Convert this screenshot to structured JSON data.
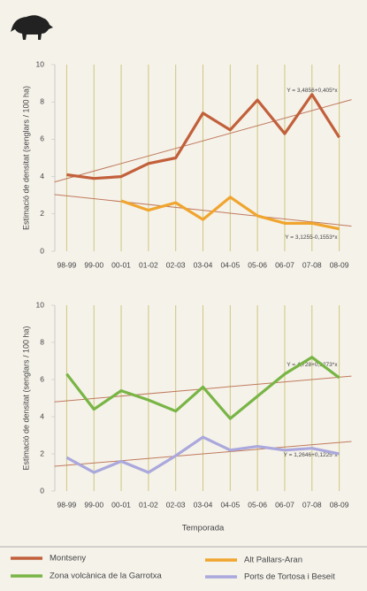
{
  "chart_data": [
    {
      "type": "line",
      "y_label": "Estimació de densitat (senglars / 100 ha)",
      "categories": [
        "98-99",
        "99-00",
        "00-01",
        "01-02",
        "02-03",
        "03-04",
        "04-05",
        "05-06",
        "06-07",
        "07-08",
        "08-09"
      ],
      "ylim": [
        0,
        10
      ],
      "yticks": [
        0,
        2,
        4,
        6,
        8,
        10
      ],
      "vertical_grid": true,
      "series": [
        {
          "name": "Montseny",
          "color": "#c2603b",
          "values": [
            4.1,
            3.9,
            4.0,
            4.7,
            5.0,
            7.4,
            6.5,
            8.1,
            6.3,
            8.4,
            6.1
          ]
        },
        {
          "name": "Alt Pallars-Aran",
          "color": "#f0a52e",
          "values": [
            null,
            null,
            2.7,
            2.2,
            2.6,
            1.7,
            2.9,
            1.9,
            1.5,
            1.5,
            1.2
          ]
        }
      ],
      "trendlines": [
        {
          "label": "Y = 3,4856+0,405*x",
          "intercept": 3.4856,
          "slope": 0.405,
          "color": "#c07a5c"
        },
        {
          "label": "Y = 3,1255-0,1553*x",
          "intercept": 3.1255,
          "slope": -0.1553,
          "color": "#c07a5c"
        }
      ]
    },
    {
      "type": "line",
      "y_label": "Estimació de densitat (senglars / 100 ha)",
      "x_label": "Temporada",
      "categories": [
        "98-99",
        "99-00",
        "00-01",
        "01-02",
        "02-03",
        "03-04",
        "04-05",
        "05-06",
        "06-07",
        "07-08",
        "08-09"
      ],
      "ylim": [
        0,
        10
      ],
      "yticks": [
        0,
        2,
        4,
        6,
        8,
        10
      ],
      "vertical_grid": true,
      "series": [
        {
          "name": "Zona volcànica de la Garrotxa",
          "color": "#78b545",
          "values": [
            6.3,
            4.4,
            5.4,
            4.9,
            4.3,
            5.6,
            3.9,
            5.1,
            6.3,
            7.2,
            6.1
          ]
        },
        {
          "name": "Ports de Tortosa i Beseit",
          "color": "#aaa8dc",
          "values": [
            1.8,
            1.0,
            1.6,
            1.0,
            1.9,
            2.9,
            2.2,
            2.4,
            2.2,
            2.3,
            2.0
          ]
        }
      ],
      "trendlines": [
        {
          "label": "Y = 4,728+0,1273*x",
          "intercept": 4.728,
          "slope": 0.1273,
          "color": "#c07a5c"
        },
        {
          "label": "Y = 1,2646+0,1225*x",
          "intercept": 1.2646,
          "slope": 0.1225,
          "color": "#c07a5c"
        }
      ]
    }
  ]
}
